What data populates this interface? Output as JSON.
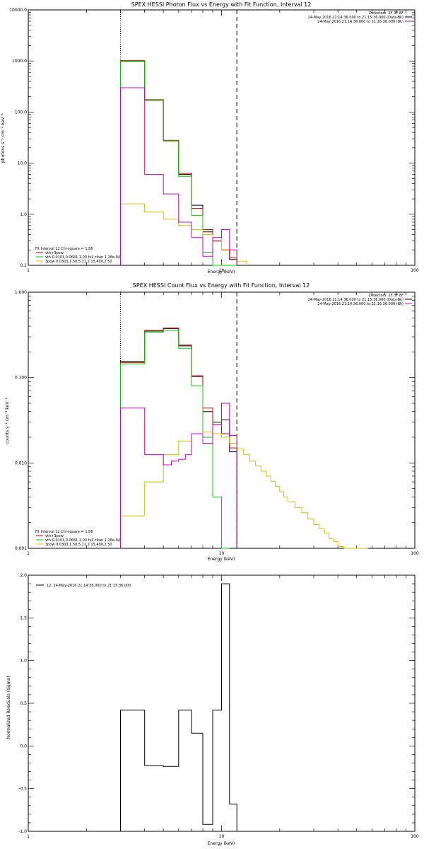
{
  "chart_data": [
    {
      "type": "line",
      "title": "SPEX HESSI Photon Flux vs Energy with Fit Function, Interval 12",
      "xlabel": "Energy (keV)",
      "ylabel": "photons s⁻¹ cm⁻² keV⁻¹",
      "xlim": [
        1,
        100
      ],
      "ylim": [
        0.1,
        10000
      ],
      "xscale": "log",
      "yscale": "log",
      "x_ticks": [
        "1",
        "10",
        "100"
      ],
      "y_ticks": [
        "0.1",
        "1.0",
        "10.0",
        "100.0",
        "1000.0",
        "10000.0"
      ],
      "vlines": [
        {
          "x": 3,
          "style": "dotted"
        },
        {
          "x": 12,
          "style": "dashed"
        }
      ],
      "legend_top_right": [
        {
          "text": "Detectors: 1F 3F 8F",
          "color": ""
        },
        {
          "text": "24-May-2016 21:14:36.000 to 21:15:36.000 (Data-Bk)",
          "color": "#000000"
        },
        {
          "text": "24-May-2016 21:14:36.000 to 21:16:36.000 (Bk)",
          "color": "#cc00cc"
        }
      ],
      "legend_bottom_left": [
        {
          "text": "Fit Interval 12   Chi-square = 1.86",
          "color": ""
        },
        {
          "text": "vth+3pow",
          "color": "#cc0000"
        },
        {
          "text": "vth 0.0101,0.0681,1.00  full cltan 1.26e-04",
          "color": "#00cc00"
        },
        {
          "text": "3pow 0.0303,1.50,5.11,2.15,400,2.50",
          "color": "#ddbb00"
        }
      ],
      "series": [
        {
          "name": "Data-Bk",
          "color": "#000000",
          "edges": [
            3,
            4,
            5,
            6,
            7,
            8,
            9,
            10,
            11,
            12
          ],
          "values": [
            1000,
            170,
            27,
            6,
            1.5,
            0.45,
            0.3,
            0.2,
            0.13
          ]
        },
        {
          "name": "vth+3pow",
          "color": "#cc0000",
          "edges": [
            3,
            4,
            5,
            6,
            7,
            8,
            9,
            10,
            11,
            12
          ],
          "values": [
            1020,
            175,
            28,
            6.3,
            1.3,
            0.5,
            0.3,
            0.2,
            0.14
          ]
        },
        {
          "name": "vth",
          "color": "#00cc00",
          "edges": [
            3,
            4,
            5,
            6,
            7,
            8,
            9,
            10,
            11,
            12
          ],
          "values": [
            980,
            170,
            27,
            5.5,
            0.95,
            0.18,
            0.1,
            0.1,
            0.1
          ]
        },
        {
          "name": "3pow",
          "color": "#ddbb00",
          "edges": [
            3,
            4,
            5,
            6,
            7,
            8,
            9,
            10,
            11,
            12,
            13.5
          ],
          "values": [
            1.6,
            1.1,
            0.8,
            0.6,
            0.5,
            0.4,
            0.35,
            0.2,
            0.2,
            0.12
          ]
        },
        {
          "name": "Bk",
          "color": "#cc00cc",
          "edges": [
            3,
            4,
            5,
            6,
            7,
            8,
            9,
            10,
            11,
            12
          ],
          "values": [
            300,
            6,
            2.5,
            0.7,
            0.35,
            0.15,
            0.35,
            0.5,
            0.2
          ]
        }
      ]
    },
    {
      "type": "line",
      "title": "SPEX HESSI Count Flux vs Energy with Fit Function, Interval 12",
      "xlabel": "Energy (keV)",
      "ylabel": "counts s⁻¹ cm⁻² keV⁻¹",
      "xlim": [
        1,
        100
      ],
      "ylim": [
        0.001,
        1
      ],
      "xscale": "log",
      "yscale": "log",
      "x_ticks": [
        "1",
        "10",
        "100"
      ],
      "y_ticks": [
        "0.001",
        "0.010",
        "0.100",
        "1.000"
      ],
      "vlines": [
        {
          "x": 3,
          "style": "dotted"
        },
        {
          "x": 12,
          "style": "dashed"
        }
      ],
      "legend_top_right": [
        {
          "text": "Detectors: 1F 3F 8F",
          "color": ""
        },
        {
          "text": "24-May-2016 21:14:36.000 to 21:15:36.000 (Data-Bk)",
          "color": "#000000"
        },
        {
          "text": "24-May-2016 21:14:36.000 to 21:16:36.000 (Bk)",
          "color": "#cc00cc"
        }
      ],
      "legend_bottom_left": [
        {
          "text": "Fit Interval 12   Chi-square = 1.86",
          "color": ""
        },
        {
          "text": "vth+3pow",
          "color": "#cc0000"
        },
        {
          "text": "vth 0.0101,0.0681,1.00  full cltan 1.26e-04",
          "color": "#00cc00"
        },
        {
          "text": "3pow 0.0303,1.50,5.11,2.15,400,2.50",
          "color": "#ddbb00"
        }
      ],
      "series": [
        {
          "name": "Data-Bk",
          "color": "#000000",
          "edges": [
            3,
            3.5,
            4,
            4.5,
            5,
            5.5,
            6,
            6.5,
            7,
            7.5,
            8,
            8.5,
            9,
            9.5,
            10,
            11,
            12
          ],
          "values": [
            0.155,
            0.155,
            0.35,
            0.35,
            0.375,
            0.375,
            0.235,
            0.235,
            0.103,
            0.103,
            0.04,
            0.04,
            0.03,
            0.03,
            0.032,
            0.0135
          ]
        },
        {
          "name": "vth+3pow",
          "color": "#cc0000",
          "edges": [
            3,
            3.5,
            4,
            4.5,
            5,
            5.5,
            6,
            6.5,
            7,
            7.5,
            8,
            8.5,
            9,
            9.5,
            10,
            11,
            12
          ],
          "values": [
            0.15,
            0.15,
            0.355,
            0.355,
            0.38,
            0.38,
            0.24,
            0.24,
            0.105,
            0.105,
            0.044,
            0.044,
            0.028,
            0.028,
            0.022,
            0.015
          ]
        },
        {
          "name": "vth",
          "color": "#00cc00",
          "edges": [
            3,
            3.5,
            4,
            4.5,
            5,
            5.5,
            6,
            6.5,
            7,
            7.5,
            8,
            8.5,
            9,
            9.5,
            10,
            11
          ],
          "values": [
            0.145,
            0.145,
            0.34,
            0.34,
            0.36,
            0.36,
            0.22,
            0.22,
            0.08,
            0.08,
            0.02,
            0.02,
            0.004,
            0.004,
            0.001
          ]
        },
        {
          "name": "3pow",
          "color": "#ddbb00",
          "edges": [
            3,
            4,
            5,
            6,
            7,
            8,
            9,
            10,
            11,
            12,
            13,
            14,
            15,
            16,
            17,
            18,
            19,
            20,
            21,
            22,
            24,
            26,
            28,
            30,
            32,
            34,
            36,
            38,
            40,
            43,
            46,
            49,
            53,
            57
          ],
          "values": [
            0.0024,
            0.006,
            0.0125,
            0.018,
            0.022,
            0.023,
            0.022,
            0.02,
            0.017,
            0.0145,
            0.0125,
            0.0105,
            0.0092,
            0.008,
            0.007,
            0.0061,
            0.0053,
            0.0046,
            0.004,
            0.0035,
            0.003,
            0.0026,
            0.0022,
            0.0019,
            0.0017,
            0.0015,
            0.0013,
            0.0012,
            0.00105,
            0.001,
            0.001,
            0.001,
            0.001
          ]
        },
        {
          "name": "Bk",
          "color": "#cc00cc",
          "edges": [
            3,
            4,
            5,
            5.5,
            6,
            6.5,
            7,
            8,
            9,
            10,
            11,
            12
          ],
          "values": [
            0.044,
            0.0125,
            0.0095,
            0.0105,
            0.011,
            0.0125,
            0.022,
            0.017,
            0.028,
            0.05,
            0.021
          ]
        }
      ]
    },
    {
      "type": "line",
      "title": "",
      "xlabel": "Energy (keV)",
      "ylabel": "Normalized Residuals (sigma)",
      "xlim": [
        1,
        100
      ],
      "ylim": [
        -1,
        2
      ],
      "xscale": "log",
      "yscale": "linear",
      "x_ticks": [
        "1",
        "10",
        "100"
      ],
      "y_ticks": [
        "-1.0",
        "-0.5",
        "0.0",
        "0.5",
        "1.0",
        "1.5",
        "2.0"
      ],
      "legend": "12. 24-May-2016 21:14:36.000 to 21:15:36.000",
      "series": [
        {
          "name": "",
          "color": "#000000",
          "edges": [
            3,
            4,
            5,
            6,
            7,
            8,
            9,
            10,
            11,
            12
          ],
          "values": [
            0.42,
            -0.23,
            -0.24,
            0.42,
            0.15,
            -0.92,
            0.42,
            1.9,
            -0.68
          ]
        }
      ]
    }
  ]
}
